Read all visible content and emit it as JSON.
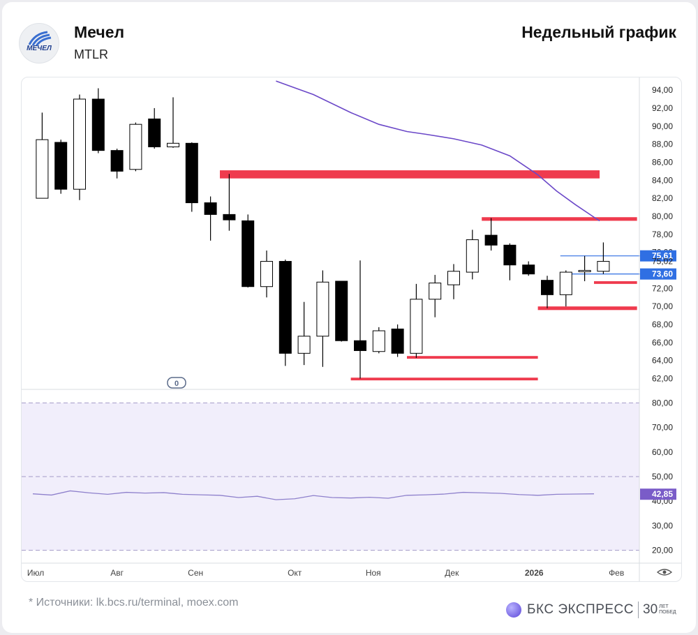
{
  "header": {
    "company_name": "Мечел",
    "ticker": "MTLR",
    "chart_title": "Недельный график",
    "logo_text": "МЕЧЕЛ"
  },
  "footer": {
    "sources": "* Источники: lk.bcs.ru/terminal, moex.com",
    "brand_name": "БКС ЭКСПРЕСС",
    "brand_30": "30",
    "brand_years_1": "ЛЕТ",
    "brand_years_2": "ПОБЕД"
  },
  "chart_data": {
    "type": "candlestick",
    "grid": false,
    "colors": {
      "up_body": "#ffffff",
      "down_body": "#000000",
      "level_lines": "#ef3b4e",
      "ma_line": "#6b48c8",
      "rsi_line": "#8e80cc",
      "rsi_band": "#f1eefb",
      "price_label": "#2f6fe3",
      "rsi_label": "#7a5cc8"
    },
    "price_axis": {
      "range": [
        60.8,
        95.4
      ],
      "ticks": [
        "94,00",
        "92,00",
        "90,00",
        "88,00",
        "86,00",
        "84,00",
        "82,00",
        "80,00",
        "78,00",
        "76,00",
        "72,00",
        "70,00",
        "68,00",
        "66,00",
        "64,00",
        "62,00"
      ],
      "tick_values": [
        94,
        92,
        90,
        88,
        86,
        84,
        82,
        80,
        78,
        76,
        72,
        70,
        68,
        66,
        64,
        62
      ],
      "labels": [
        {
          "text": "75,61",
          "value": 75.61,
          "style": "blue"
        },
        {
          "text": "75,02",
          "value": 75.02,
          "style": "plain"
        },
        {
          "text": "73,60",
          "value": 73.6,
          "style": "blue"
        }
      ]
    },
    "x_axis": {
      "months": [
        {
          "label": "Июл",
          "week": 0.15
        },
        {
          "label": "Авг",
          "week": 4.5
        },
        {
          "label": "Сен",
          "week": 8.7
        },
        {
          "label": "Окт",
          "week": 14.0
        },
        {
          "label": "Ноя",
          "week": 18.2
        },
        {
          "label": "Дек",
          "week": 22.4
        },
        {
          "label": "2026",
          "week": 26.8
        },
        {
          "label": "Фев",
          "week": 31.2
        }
      ]
    },
    "candles": [
      {
        "o": 82.0,
        "h": 91.5,
        "l": 82.0,
        "c": 88.5
      },
      {
        "o": 88.2,
        "h": 88.5,
        "l": 82.5,
        "c": 83.0
      },
      {
        "o": 83.0,
        "h": 93.5,
        "l": 81.8,
        "c": 93.0
      },
      {
        "o": 93.0,
        "h": 94.2,
        "l": 87.0,
        "c": 87.3
      },
      {
        "o": 87.3,
        "h": 87.5,
        "l": 84.2,
        "c": 85.0
      },
      {
        "o": 85.2,
        "h": 90.4,
        "l": 85.0,
        "c": 90.2
      },
      {
        "o": 90.8,
        "h": 92.0,
        "l": 87.5,
        "c": 87.7
      },
      {
        "o": 87.7,
        "h": 93.2,
        "l": 87.6,
        "c": 88.1
      },
      {
        "o": 88.1,
        "h": 88.2,
        "l": 80.5,
        "c": 81.5
      },
      {
        "o": 81.5,
        "h": 82.2,
        "l": 77.3,
        "c": 80.2
      },
      {
        "o": 80.2,
        "h": 84.7,
        "l": 78.4,
        "c": 79.6
      },
      {
        "o": 79.5,
        "h": 80.2,
        "l": 72.1,
        "c": 72.2
      },
      {
        "o": 72.2,
        "h": 76.2,
        "l": 71.0,
        "c": 75.0
      },
      {
        "o": 75.0,
        "h": 75.2,
        "l": 63.4,
        "c": 64.8
      },
      {
        "o": 64.8,
        "h": 70.5,
        "l": 63.5,
        "c": 66.7
      },
      {
        "o": 66.7,
        "h": 74.0,
        "l": 63.3,
        "c": 72.7
      },
      {
        "o": 72.8,
        "h": 72.8,
        "l": 66.1,
        "c": 66.2
      },
      {
        "o": 66.2,
        "h": 75.1,
        "l": 62.0,
        "c": 65.1
      },
      {
        "o": 65.0,
        "h": 67.7,
        "l": 64.8,
        "c": 67.3
      },
      {
        "o": 67.5,
        "h": 68.0,
        "l": 64.4,
        "c": 64.8
      },
      {
        "o": 64.8,
        "h": 72.5,
        "l": 64.3,
        "c": 70.8
      },
      {
        "o": 70.8,
        "h": 73.5,
        "l": 68.8,
        "c": 72.6
      },
      {
        "o": 72.4,
        "h": 74.7,
        "l": 70.8,
        "c": 73.9
      },
      {
        "o": 73.8,
        "h": 78.5,
        "l": 73.0,
        "c": 77.4
      },
      {
        "o": 77.9,
        "h": 79.8,
        "l": 76.2,
        "c": 76.8
      },
      {
        "o": 76.8,
        "h": 77.0,
        "l": 72.9,
        "c": 74.6
      },
      {
        "o": 74.6,
        "h": 75.0,
        "l": 73.4,
        "c": 73.6
      },
      {
        "o": 72.9,
        "h": 73.4,
        "l": 69.8,
        "c": 71.3
      },
      {
        "o": 71.3,
        "h": 74.0,
        "l": 70.0,
        "c": 73.8
      },
      {
        "o": 74.0,
        "h": 75.6,
        "l": 72.8,
        "c": 74.0
      },
      {
        "o": 73.9,
        "h": 77.1,
        "l": 73.6,
        "c": 75.0
      }
    ],
    "levels": [
      {
        "from": 10,
        "to": 30.3,
        "low": 84.2,
        "high": 85.1
      },
      {
        "from": 24,
        "to": 32.3,
        "low": 79.5,
        "high": 79.9
      },
      {
        "from": 30,
        "to": 32.3,
        "low": 72.5,
        "high": 72.8
      },
      {
        "from": 27,
        "to": 32.3,
        "low": 69.6,
        "high": 70.0
      },
      {
        "from": 20,
        "to": 27.0,
        "low": 64.2,
        "high": 64.5
      },
      {
        "from": 17,
        "to": 27.0,
        "low": 61.8,
        "high": 62.1
      }
    ],
    "blue_lines": [
      {
        "from": 28.2,
        "to": 33.0,
        "value": 75.61
      },
      {
        "from": 28.2,
        "to": 33.0,
        "value": 73.6
      }
    ],
    "ma": [
      {
        "week": 13.0,
        "value": 95.0
      },
      {
        "week": 15.0,
        "value": 93.5
      },
      {
        "week": 17.0,
        "value": 91.5
      },
      {
        "week": 18.5,
        "value": 90.2
      },
      {
        "week": 20.0,
        "value": 89.4
      },
      {
        "week": 21.0,
        "value": 89.1
      },
      {
        "week": 22.5,
        "value": 88.6
      },
      {
        "week": 24.0,
        "value": 87.9
      },
      {
        "week": 25.5,
        "value": 86.7
      },
      {
        "week": 27.0,
        "value": 84.6
      },
      {
        "week": 28.0,
        "value": 82.8
      },
      {
        "week": 29.0,
        "value": 81.3
      },
      {
        "week": 30.0,
        "value": 79.9
      },
      {
        "week": 30.3,
        "value": 79.5
      }
    ],
    "indicator": {
      "range": [
        14.8,
        85.5
      ],
      "band": [
        20,
        80
      ],
      "dashed_levels": [
        80,
        50,
        20
      ],
      "ticks": [
        "80,00",
        "70,00",
        "60,00",
        "50,00",
        "40,00",
        "30,00",
        "20,00"
      ],
      "tick_values": [
        80,
        70,
        60,
        50,
        40,
        30,
        20
      ],
      "current_label": "42,85",
      "current_value": 42.85,
      "values": [
        43.0,
        42.5,
        44.2,
        43.4,
        42.8,
        43.6,
        43.3,
        43.5,
        42.8,
        42.6,
        42.4,
        41.5,
        42.0,
        40.6,
        41.0,
        42.3,
        41.5,
        41.3,
        41.6,
        41.2,
        42.4,
        42.6,
        42.9,
        43.6,
        43.4,
        43.2,
        42.7,
        42.4,
        42.8,
        42.9,
        43.0
      ]
    }
  }
}
